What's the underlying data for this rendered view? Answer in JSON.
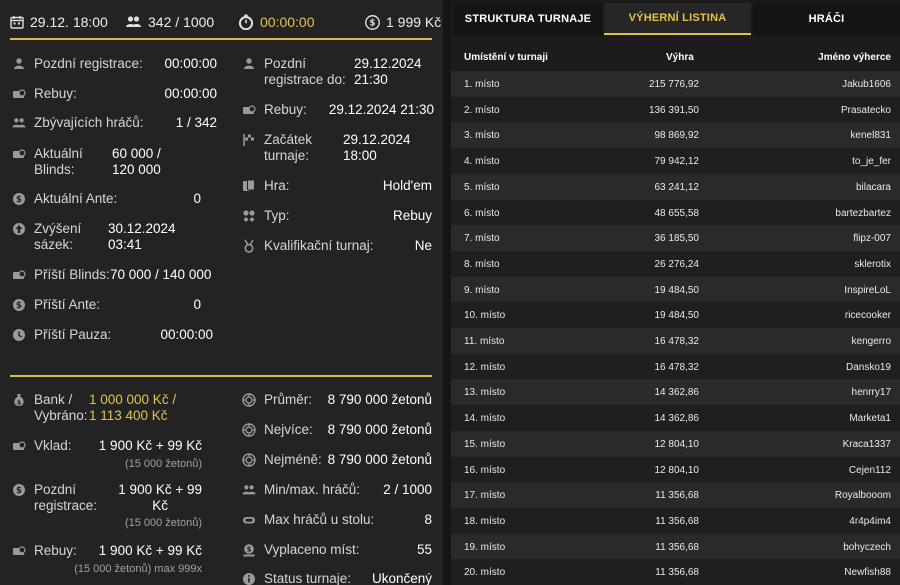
{
  "top": {
    "date": "29.12. 18:00",
    "players": "342 / 1000",
    "timer": "00:00:00",
    "prize": "1 999 Kč"
  },
  "left_col": [
    {
      "icon": "person-icon",
      "label": "Pozdní registrace:",
      "value": "00:00:00"
    },
    {
      "icon": "chips-icon",
      "label": "Rebuy:",
      "value": "00:00:00"
    },
    {
      "icon": "people-icon",
      "label": "Zbývajících hráčů:",
      "value": "1 / 342"
    },
    {
      "icon": "blinds-icon",
      "label": "Aktuální\nBlinds:",
      "value": "60 000 /\n120 000"
    },
    {
      "icon": "ante-icon",
      "label": "Aktuální Ante:",
      "value": "0"
    },
    {
      "icon": "arrow-up-icon",
      "label": "Zvýšení\nsázek:",
      "value": "30.12.2024\n03:41"
    },
    {
      "icon": "blinds-icon",
      "label": "Příští Blinds:",
      "value": "70 000 / 140 000"
    },
    {
      "icon": "ante-icon",
      "label": "Příští Ante:",
      "value": "0"
    },
    {
      "icon": "clock-icon",
      "label": "Příští Pauza:",
      "value": "00:00:00"
    }
  ],
  "right_col": [
    {
      "icon": "person-icon",
      "label": "Pozdní\nregistrace do:",
      "value": "29.12.2024\n21:30"
    },
    {
      "icon": "chips-icon",
      "label": "Rebuy:",
      "value": "29.12.2024 21:30"
    },
    {
      "icon": "flag-icon",
      "label": "Začátek\nturnaje:",
      "value": "29.12.2024\n18:00"
    },
    {
      "icon": "cards-icon",
      "label": "Hra:",
      "value": "Hold'em"
    },
    {
      "icon": "suits-icon",
      "label": "Typ:",
      "value": "Rebuy"
    },
    {
      "icon": "medal-icon",
      "label": "Kvalifikační turnaj:",
      "value": "Ne"
    }
  ],
  "bottom_left": {
    "bank_label": "Bank /\nVybráno:",
    "bank_value": "1 000 000 Kč /\n1 113 400 Kč",
    "vklad_label": "Vklad:",
    "vklad_value": "1 900 Kč + 99 Kč",
    "vklad_sub": "(15 000 žetonů)",
    "late_label": "Pozdní\nregistrace:",
    "late_value": "1 900 Kč + 99\nKč",
    "late_sub": "(15 000 žetonů)",
    "rebuy_label": "Rebuy:",
    "rebuy_value": "1 900 Kč + 99 Kč",
    "rebuy_sub": "(15 000 žetonů) max 999x"
  },
  "bottom_right": [
    {
      "icon": "chip-icon",
      "label": "Průměr:",
      "value": "8 790 000 žetonů"
    },
    {
      "icon": "chip-icon",
      "label": "Nejvíce:",
      "value": "8 790 000 žetonů"
    },
    {
      "icon": "chip-icon",
      "label": "Nejméně:",
      "value": "8 790 000 žetonů"
    },
    {
      "icon": "people-icon",
      "label": "Min/max. hráčů:",
      "value": "2 / 1000"
    },
    {
      "icon": "table-icon",
      "label": "Max hráčů u stolu:",
      "value": "8"
    },
    {
      "icon": "payout-icon",
      "label": "Vyplaceno míst:",
      "value": "55"
    },
    {
      "icon": "info-icon",
      "label": "Status turnaje:",
      "value": "Ukončený"
    }
  ],
  "tabs": [
    {
      "label": "STRUKTURA TURNAJE",
      "active": false
    },
    {
      "label": "VÝHERNÍ LISTINA",
      "active": true
    },
    {
      "label": "HRÁČI",
      "active": false
    }
  ],
  "table": {
    "headers": [
      "Umístění v turnaji",
      "Výhra",
      "Jméno výherce"
    ],
    "rows": [
      [
        "1. místo",
        "215 776,92",
        "Jakub1606"
      ],
      [
        "2. místo",
        "136 391,50",
        "Prasatecko"
      ],
      [
        "3. místo",
        "98 869,92",
        "kenel831"
      ],
      [
        "4. místo",
        "79 942,12",
        "to_je_fer"
      ],
      [
        "5. místo",
        "63 241,12",
        "bilacara"
      ],
      [
        "6. místo",
        "48 655,58",
        "bartezbartez"
      ],
      [
        "7. místo",
        "36 185,50",
        "flipz-007"
      ],
      [
        "8. místo",
        "26 276,24",
        "sklerotix"
      ],
      [
        "9. místo",
        "19 484,50",
        "InspireLoL"
      ],
      [
        "10. místo",
        "19 484,50",
        "ricecooker"
      ],
      [
        "11. místo",
        "16 478,32",
        "kengerro"
      ],
      [
        "12. místo",
        "16 478,32",
        "Dansko19"
      ],
      [
        "13. místo",
        "14 362,86",
        "henrry17"
      ],
      [
        "14. místo",
        "14 362,86",
        "Marketa1"
      ],
      [
        "15. místo",
        "12 804,10",
        "Kraca1337"
      ],
      [
        "16. místo",
        "12 804,10",
        "Cejen112"
      ],
      [
        "17. místo",
        "11 356,68",
        "Royalbooom"
      ],
      [
        "18. místo",
        "11 356,68",
        "4r4p4im4"
      ],
      [
        "19. místo",
        "11 356,68",
        "bohyczech"
      ],
      [
        "20. místo",
        "11 356,68",
        "Newfish88"
      ]
    ]
  },
  "colors": {
    "accent": "#e2c348",
    "panel": "#232323",
    "row_even": "#2a2a2a",
    "row_odd": "#1f1f1f"
  }
}
